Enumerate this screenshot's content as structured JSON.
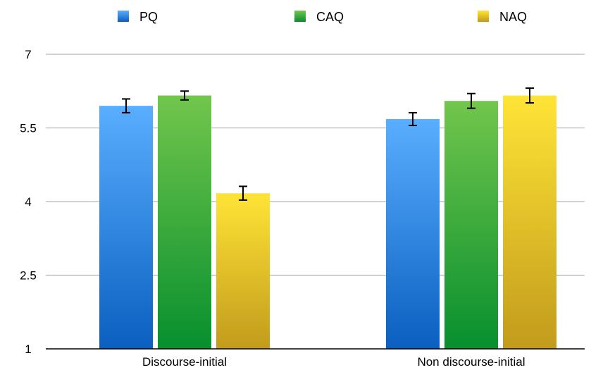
{
  "chart_data": {
    "type": "bar",
    "categories": [
      "Discourse-initial",
      "Non discourse-initial"
    ],
    "series": [
      {
        "name": "PQ",
        "values": [
          5.95,
          5.68
        ],
        "errors": [
          0.14,
          0.13
        ],
        "color_top": "#5aaeff",
        "color_bottom": "#0a5fc0"
      },
      {
        "name": "CAQ",
        "values": [
          6.16,
          6.05
        ],
        "errors": [
          0.09,
          0.15
        ],
        "color_top": "#72c64c",
        "color_bottom": "#078f2e"
      },
      {
        "name": "NAQ",
        "values": [
          4.17,
          6.16
        ],
        "errors": [
          0.14,
          0.15
        ],
        "color_top": "#ffe436",
        "color_bottom": "#c29b1c"
      }
    ],
    "yticks": [
      1,
      2.5,
      4,
      5.5,
      7
    ],
    "ytick_labels": [
      "1",
      "2.5",
      "4",
      "5.5",
      "7"
    ],
    "ylim": [
      1,
      7
    ],
    "grid": true,
    "legend_position": "top"
  }
}
